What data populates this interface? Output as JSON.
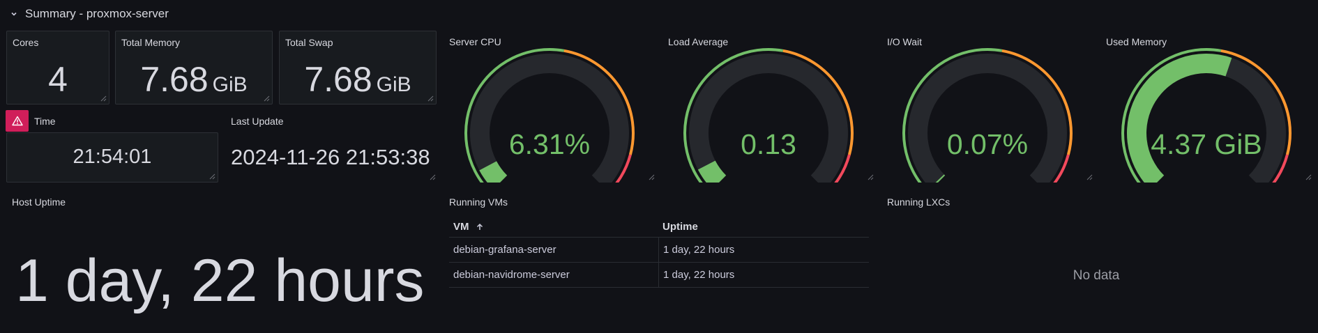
{
  "row": {
    "title": "Summary - proxmox-server"
  },
  "cores": {
    "title": "Cores",
    "value": "4"
  },
  "total_memory": {
    "title": "Total Memory",
    "value": "7.68",
    "unit": "GiB"
  },
  "total_swap": {
    "title": "Total Swap",
    "value": "7.68",
    "unit": "GiB"
  },
  "time": {
    "title": "Time",
    "value": "21:54:01"
  },
  "last_update": {
    "title": "Last Update",
    "value": "2024-11-26 21:53:38"
  },
  "host_uptime": {
    "title": "Host Uptime",
    "value": "1 day, 22 hours"
  },
  "gauges": [
    {
      "title": "Server CPU",
      "display": "6.31%",
      "fraction": 0.0631
    },
    {
      "title": "Load Average",
      "display": "0.13",
      "fraction": 0.065
    },
    {
      "title": "I/O Wait",
      "display": "0.07%",
      "fraction": 0.005
    },
    {
      "title": "Used Memory",
      "display": "4.37 GiB",
      "fraction": 0.569
    }
  ],
  "running_vms": {
    "title": "Running VMs",
    "columns": [
      "VM",
      "Uptime"
    ],
    "rows": [
      [
        "debian-grafana-server",
        "1 day, 22 hours"
      ],
      [
        "debian-navidrome-server",
        "1 day, 22 hours"
      ]
    ]
  },
  "running_lxcs": {
    "title": "Running LXCs",
    "empty_text": "No data"
  },
  "colors": {
    "green": "#73bf69",
    "orange": "#ff9830",
    "red": "#f2495c",
    "track": "#26282d",
    "alert": "#d01e5a"
  }
}
